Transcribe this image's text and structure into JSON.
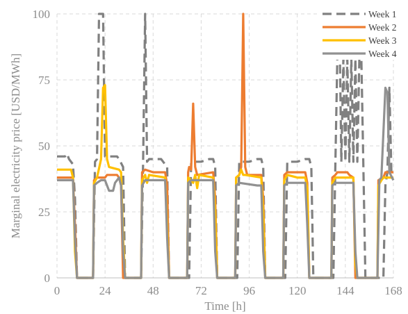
{
  "chart_data": {
    "type": "line",
    "xlabel": "Time [h]",
    "ylabel": "Marginal electricity price [USD/MWh]",
    "xlim": [
      0,
      168
    ],
    "ylim": [
      0,
      100
    ],
    "xticks": [
      0,
      24,
      48,
      72,
      96,
      120,
      144,
      168
    ],
    "yticks": [
      0,
      25,
      50,
      75,
      100
    ],
    "grid": true,
    "legend_position": "top-right",
    "series": [
      {
        "name": "Week 1",
        "color": "#808080",
        "dash": "dashed",
        "points": [
          [
            0,
            46
          ],
          [
            4,
            46
          ],
          [
            5,
            47
          ],
          [
            6,
            45
          ],
          [
            8,
            43
          ],
          [
            9,
            30
          ],
          [
            10,
            0
          ],
          [
            18,
            0
          ],
          [
            19,
            44
          ],
          [
            20,
            45
          ],
          [
            21,
            100
          ],
          [
            22,
            100
          ],
          [
            23,
            100
          ],
          [
            24,
            46
          ],
          [
            30,
            46
          ],
          [
            31,
            45
          ],
          [
            33,
            42
          ],
          [
            34,
            0
          ],
          [
            42,
            0
          ],
          [
            43,
            44
          ],
          [
            44,
            100
          ],
          [
            45,
            44
          ],
          [
            46,
            45
          ],
          [
            52,
            45
          ],
          [
            53,
            44
          ],
          [
            55,
            42
          ],
          [
            56,
            0
          ],
          [
            66,
            0
          ],
          [
            67,
            44
          ],
          [
            72,
            44
          ],
          [
            76,
            45
          ],
          [
            78,
            45
          ],
          [
            79,
            42
          ],
          [
            80,
            0
          ],
          [
            90,
            0
          ],
          [
            91,
            44
          ],
          [
            96,
            44
          ],
          [
            100,
            45
          ],
          [
            102,
            45
          ],
          [
            103,
            42
          ],
          [
            104,
            0
          ],
          [
            114,
            0
          ],
          [
            115,
            44
          ],
          [
            120,
            44
          ],
          [
            124,
            45
          ],
          [
            126,
            45
          ],
          [
            127,
            42
          ],
          [
            128,
            0
          ],
          [
            138,
            0
          ],
          [
            139,
            43
          ],
          [
            140,
            83
          ],
          [
            141,
            100
          ],
          [
            142,
            44
          ],
          [
            143,
            83
          ],
          [
            144,
            44
          ],
          [
            145,
            83
          ],
          [
            146,
            44
          ],
          [
            147,
            83
          ],
          [
            148,
            44
          ],
          [
            149,
            83
          ],
          [
            150,
            44
          ],
          [
            151,
            83
          ],
          [
            152,
            83
          ],
          [
            153,
            42
          ],
          [
            154,
            0
          ],
          [
            163,
            0
          ],
          [
            164,
            35
          ],
          [
            165,
            40
          ],
          [
            166,
            72
          ],
          [
            167,
            40
          ],
          [
            168,
            40
          ]
        ]
      },
      {
        "name": "Week 2",
        "color": "#ed7d31",
        "dash": "solid",
        "points": [
          [
            0,
            38
          ],
          [
            8,
            38
          ],
          [
            9,
            20
          ],
          [
            10,
            0
          ],
          [
            18,
            0
          ],
          [
            18.5,
            37
          ],
          [
            20,
            38
          ],
          [
            24,
            38
          ],
          [
            25,
            39
          ],
          [
            30,
            39
          ],
          [
            31,
            38
          ],
          [
            32,
            35
          ],
          [
            33,
            0
          ],
          [
            42,
            0
          ],
          [
            42.5,
            40
          ],
          [
            44,
            41
          ],
          [
            48,
            40
          ],
          [
            54,
            40
          ],
          [
            55,
            35
          ],
          [
            56,
            0
          ],
          [
            65,
            0
          ],
          [
            65.5,
            40
          ],
          [
            66,
            42
          ],
          [
            67,
            41
          ],
          [
            68,
            66
          ],
          [
            69,
            42
          ],
          [
            70,
            39
          ],
          [
            78,
            40
          ],
          [
            79,
            30
          ],
          [
            80,
            0
          ],
          [
            89,
            0
          ],
          [
            89.5,
            38
          ],
          [
            91,
            39
          ],
          [
            92,
            42
          ],
          [
            93,
            100
          ],
          [
            94,
            42
          ],
          [
            95,
            39
          ],
          [
            102,
            39
          ],
          [
            103,
            30
          ],
          [
            104,
            0
          ],
          [
            113,
            0
          ],
          [
            113.5,
            39
          ],
          [
            115,
            40
          ],
          [
            124,
            40
          ],
          [
            125,
            36
          ],
          [
            126,
            0
          ],
          [
            137,
            0
          ],
          [
            137.5,
            38
          ],
          [
            139,
            39
          ],
          [
            140,
            40
          ],
          [
            145,
            40
          ],
          [
            146,
            39
          ],
          [
            148,
            38
          ],
          [
            149,
            0
          ],
          [
            160,
            0
          ],
          [
            160.5,
            37
          ],
          [
            163,
            38
          ],
          [
            164,
            40
          ],
          [
            168,
            40
          ]
        ]
      },
      {
        "name": "Week 3",
        "color": "#ffc000",
        "dash": "solid",
        "points": [
          [
            0,
            41
          ],
          [
            7,
            41
          ],
          [
            8,
            38
          ],
          [
            9,
            10
          ],
          [
            10,
            0
          ],
          [
            18,
            0
          ],
          [
            18.5,
            36
          ],
          [
            20,
            38
          ],
          [
            22,
            45
          ],
          [
            23,
            72
          ],
          [
            24,
            73
          ],
          [
            25,
            45
          ],
          [
            26,
            42
          ],
          [
            31,
            41
          ],
          [
            32,
            40
          ],
          [
            33,
            15
          ],
          [
            34,
            0
          ],
          [
            42,
            0
          ],
          [
            42.5,
            37
          ],
          [
            44,
            39
          ],
          [
            45,
            36
          ],
          [
            46,
            39
          ],
          [
            54,
            38
          ],
          [
            55,
            20
          ],
          [
            56,
            0
          ],
          [
            65,
            0
          ],
          [
            65.5,
            38
          ],
          [
            67,
            37
          ],
          [
            68,
            36
          ],
          [
            69,
            39
          ],
          [
            70,
            34
          ],
          [
            71,
            39
          ],
          [
            78,
            38
          ],
          [
            79,
            25
          ],
          [
            80,
            0
          ],
          [
            89,
            0
          ],
          [
            89.5,
            38
          ],
          [
            91,
            39
          ],
          [
            92,
            41
          ],
          [
            93,
            39
          ],
          [
            94,
            39
          ],
          [
            102,
            38
          ],
          [
            103,
            25
          ],
          [
            104,
            0
          ],
          [
            113,
            0
          ],
          [
            113.5,
            37
          ],
          [
            115,
            39
          ],
          [
            120,
            38
          ],
          [
            124,
            38
          ],
          [
            125,
            34
          ],
          [
            126,
            0
          ],
          [
            137,
            0
          ],
          [
            137.5,
            36
          ],
          [
            139,
            38
          ],
          [
            148,
            38
          ],
          [
            149,
            5
          ],
          [
            150,
            0
          ],
          [
            160,
            0
          ],
          [
            160.5,
            35
          ],
          [
            162,
            37
          ],
          [
            163,
            38
          ],
          [
            168,
            38
          ]
        ]
      },
      {
        "name": "Week 4",
        "color": "#919191",
        "dash": "solid",
        "points": [
          [
            0,
            37
          ],
          [
            8,
            37
          ],
          [
            9,
            15
          ],
          [
            10,
            0
          ],
          [
            18,
            0
          ],
          [
            18.5,
            35
          ],
          [
            20,
            36
          ],
          [
            22,
            37
          ],
          [
            24,
            37
          ],
          [
            25,
            35
          ],
          [
            26,
            33
          ],
          [
            28,
            33
          ],
          [
            29,
            36
          ],
          [
            31,
            38
          ],
          [
            32,
            35
          ],
          [
            33,
            10
          ],
          [
            34,
            0
          ],
          [
            42,
            0
          ],
          [
            42.5,
            35
          ],
          [
            44,
            37
          ],
          [
            50,
            37
          ],
          [
            54,
            37
          ],
          [
            55,
            15
          ],
          [
            56,
            0
          ],
          [
            65,
            0
          ],
          [
            65.5,
            36
          ],
          [
            67,
            37
          ],
          [
            78,
            37
          ],
          [
            79,
            10
          ],
          [
            80,
            0
          ],
          [
            89,
            0
          ],
          [
            89.5,
            35
          ],
          [
            91,
            36
          ],
          [
            100,
            35
          ],
          [
            102,
            35
          ],
          [
            103,
            10
          ],
          [
            104,
            0
          ],
          [
            113,
            0
          ],
          [
            113.5,
            35
          ],
          [
            115,
            36
          ],
          [
            124,
            36
          ],
          [
            125,
            20
          ],
          [
            126,
            0
          ],
          [
            137,
            0
          ],
          [
            137.5,
            35
          ],
          [
            139,
            36
          ],
          [
            148,
            36
          ],
          [
            149,
            10
          ],
          [
            150,
            0
          ],
          [
            160,
            0
          ],
          [
            161,
            37
          ],
          [
            162,
            38
          ],
          [
            164,
            72
          ],
          [
            165,
            70
          ],
          [
            166,
            40
          ],
          [
            168,
            37
          ]
        ]
      }
    ]
  }
}
